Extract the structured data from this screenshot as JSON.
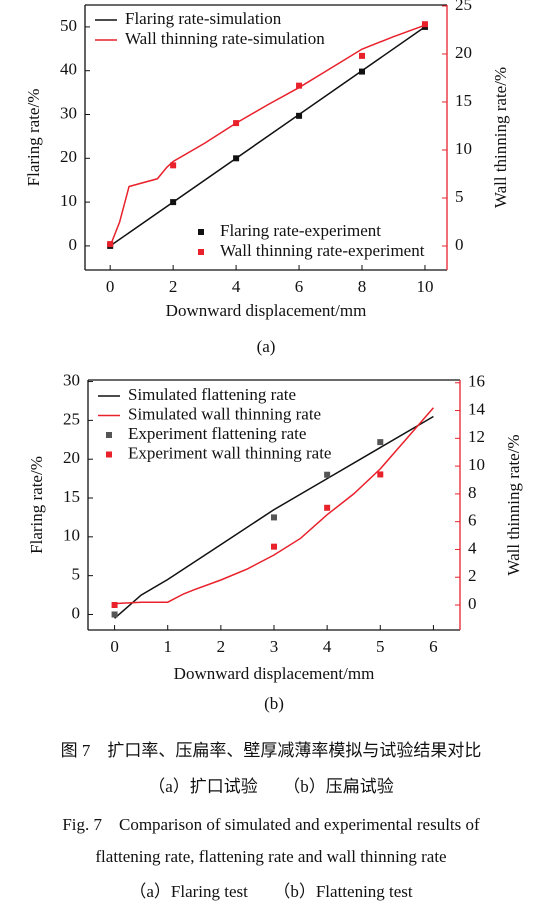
{
  "chart_data": [
    {
      "type": "line",
      "panel_label": "(a)",
      "x_label": "Downward displacement/mm",
      "y_label": "Flaring rate/%",
      "y2_label": "Wall thinning rate/%",
      "xlim": [
        -0.8,
        10.7
      ],
      "xticks": [
        0,
        2,
        4,
        6,
        8,
        10
      ],
      "ylim": [
        -5.5,
        55
      ],
      "yticks": [
        0,
        10,
        20,
        30,
        40,
        50
      ],
      "y2lim": [
        -2.5,
        25.1
      ],
      "y2ticks": [
        0,
        5,
        10,
        15,
        20,
        25
      ],
      "y2color": "#e8212b",
      "series": [
        {
          "name": "Flaring rate-simulation",
          "mode": "line",
          "axis": "y",
          "color": "#111111",
          "legend": "upper left",
          "x": [
            0,
            10
          ],
          "values": [
            0,
            50
          ]
        },
        {
          "name": "Wall thinning rate-simulation",
          "mode": "line",
          "axis": "y2",
          "color": "#e8212b",
          "legend": "upper left",
          "x": [
            0,
            0.3,
            0.6,
            1.5,
            1.8,
            2,
            3,
            4,
            5,
            6,
            7,
            8,
            9,
            10
          ],
          "values": [
            0,
            2.5,
            6.2,
            7,
            8.2,
            8.8,
            10.7,
            12.8,
            14.7,
            16.5,
            18.5,
            20.5,
            21.8,
            23
          ]
        },
        {
          "name": "Flaring rate-experiment",
          "mode": "marker",
          "axis": "y",
          "color": "#111111",
          "legend": "lower right",
          "x": [
            0,
            2,
            4,
            6,
            8,
            10
          ],
          "values": [
            0,
            10,
            20,
            29.7,
            39.8,
            50
          ]
        },
        {
          "name": "Wall thinning rate-experiment",
          "mode": "marker",
          "axis": "y2",
          "color": "#e8212b",
          "legend": "lower right",
          "x": [
            0,
            2,
            4,
            6,
            8,
            10
          ],
          "values": [
            0.2,
            8.4,
            12.8,
            16.7,
            19.8,
            23.1
          ]
        }
      ]
    },
    {
      "type": "line",
      "panel_label": "(b)",
      "x_label": "Downward displacement/mm",
      "y_label": "Flaring rate/%",
      "y2_label": "Wall thinning rate/%",
      "xlim": [
        -0.5,
        6.5
      ],
      "xticks": [
        0,
        1,
        2,
        3,
        4,
        5,
        6
      ],
      "ylim": [
        -2,
        30.2
      ],
      "yticks": [
        0,
        5,
        10,
        15,
        20,
        25,
        30
      ],
      "y2lim": [
        -1.8,
        16.2
      ],
      "y2ticks": [
        0,
        2,
        4,
        6,
        8,
        10,
        12,
        14,
        16
      ],
      "y2color": "#e8212b",
      "series": [
        {
          "name": "Simulated flattening rate",
          "mode": "line",
          "axis": "y",
          "color": "#111111",
          "legend": "upper left",
          "x": [
            0,
            0.5,
            1,
            2,
            3,
            4,
            5,
            6
          ],
          "values": [
            -0.5,
            2.5,
            4.5,
            9,
            13.5,
            17.5,
            21.5,
            25.5
          ]
        },
        {
          "name": "Simulated wall thinning rate",
          "mode": "line",
          "axis": "y2",
          "color": "#e8212b",
          "legend": "upper left",
          "x": [
            0,
            0.5,
            1,
            1.3,
            1.5,
            2,
            2.5,
            3,
            3.5,
            4,
            4.5,
            5,
            5.5,
            6
          ],
          "values": [
            0.1,
            0.2,
            0.2,
            0.8,
            1.1,
            1.8,
            2.6,
            3.6,
            4.8,
            6.5,
            8,
            9.8,
            12,
            14.2
          ]
        },
        {
          "name": "Experiment flattening rate",
          "mode": "marker",
          "axis": "y",
          "color": "#555555",
          "legend": "upper left",
          "x": [
            0,
            3,
            4,
            5
          ],
          "values": [
            0,
            12.5,
            18,
            22.2
          ]
        },
        {
          "name": "Experiment wall thinning rate",
          "mode": "marker",
          "axis": "y2",
          "color": "#e8212b",
          "legend": "upper left",
          "x": [
            0,
            3,
            4,
            5
          ],
          "values": [
            0,
            4.2,
            7,
            9.4
          ]
        }
      ]
    }
  ],
  "caption": {
    "zh_title": "图 7　扩口率、压扁率、壁厚减薄率模拟与试验结果对比",
    "zh_sub": "（a）扩口试验　　（b）压扁试验",
    "en_title_1": "Fig. 7　Comparison of simulated and experimental results of",
    "en_title_2": "flattening rate, flattening rate and wall thinning rate",
    "en_sub": "（a）Flaring test　　（b）Flattening test"
  }
}
